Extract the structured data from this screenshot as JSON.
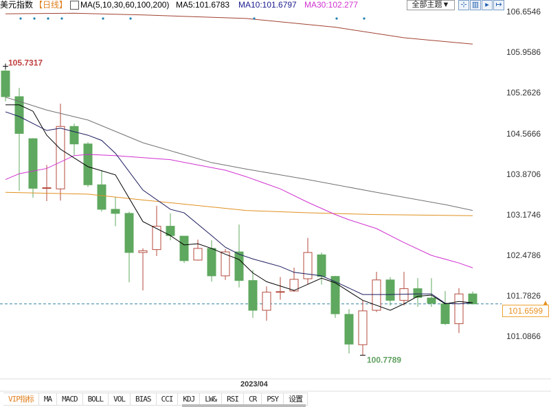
{
  "header": {
    "title": "美元指数",
    "period": "【日线】",
    "ma_label": "MA(5,10,30,60,100,200)",
    "ma5": "MA5:101.6783",
    "ma10": "MA10:101.6797",
    "ma30": "MA30:102.277",
    "theme_button": "全部主题▼",
    "tool_icons": [
      "zoom-icon",
      "chart-icon",
      "play-icon",
      "exit-icon"
    ]
  },
  "colors": {
    "up": "#b44a3e",
    "down": "#5fa85f",
    "ma5": "#000000",
    "ma10": "#1a1a5e",
    "ma30": "#d030d0",
    "ma60": "#707070",
    "ma100": "#e09020",
    "ma200": "#a04030",
    "last_price": "#e89020"
  },
  "chart_data": {
    "type": "candlestick",
    "ylim": [
      100.7,
      106.7
    ],
    "y_ticks": [
      "106.6546",
      "105.9586",
      "105.2626",
      "104.5666",
      "103.8706",
      "103.1746",
      "102.4786",
      "101.7826",
      "101.0866"
    ],
    "x_tick": "2023/04",
    "high_label": "105.7317",
    "low_label": "100.7789",
    "last_price": "101.6599",
    "ohlc": [
      [
        105.65,
        105.73,
        105.13,
        105.21
      ],
      [
        105.21,
        105.36,
        103.6,
        104.58
      ],
      [
        104.49,
        104.5,
        103.48,
        103.64
      ],
      [
        103.64,
        104.04,
        103.42,
        103.65
      ],
      [
        103.63,
        105.09,
        103.43,
        104.7
      ],
      [
        104.7,
        104.75,
        104.21,
        104.4
      ],
      [
        104.4,
        104.43,
        103.66,
        103.7
      ],
      [
        103.7,
        103.95,
        103.24,
        103.28
      ],
      [
        103.28,
        103.49,
        102.99,
        103.21
      ],
      [
        103.21,
        103.24,
        102.03,
        102.54
      ],
      [
        102.54,
        102.61,
        101.89,
        102.57
      ],
      [
        102.59,
        103.34,
        102.48,
        102.99
      ],
      [
        102.99,
        103.21,
        102.75,
        102.83
      ],
      [
        102.82,
        102.82,
        102.36,
        102.4
      ],
      [
        102.41,
        102.76,
        102.4,
        102.61
      ],
      [
        102.61,
        102.75,
        102.04,
        102.14
      ],
      [
        102.14,
        102.6,
        102.07,
        102.55
      ],
      [
        102.55,
        103.02,
        101.94,
        102.06
      ],
      [
        102.06,
        102.24,
        101.42,
        101.55
      ],
      [
        101.55,
        101.96,
        101.37,
        101.86
      ],
      [
        101.87,
        102.12,
        101.73,
        101.87
      ],
      [
        101.88,
        102.28,
        101.87,
        102.08
      ],
      [
        102.09,
        102.79,
        101.99,
        102.54
      ],
      [
        102.5,
        102.54,
        101.99,
        102.13
      ],
      [
        102.13,
        102.14,
        101.42,
        101.49
      ],
      [
        101.48,
        101.57,
        100.81,
        100.97
      ],
      [
        100.96,
        101.72,
        100.7789,
        101.54
      ],
      [
        101.55,
        102.21,
        101.52,
        102.07
      ],
      [
        102.07,
        102.12,
        101.63,
        101.72
      ],
      [
        101.72,
        102.21,
        101.63,
        101.92
      ],
      [
        101.92,
        102.1,
        101.61,
        101.77
      ],
      [
        101.76,
        102.1,
        101.61,
        101.67
      ],
      [
        101.66,
        101.88,
        101.3,
        101.32
      ],
      [
        101.32,
        101.93,
        101.16,
        101.83
      ],
      [
        101.83,
        101.87,
        101.66,
        101.6599
      ]
    ],
    "ma": {
      "ma5": [
        [
          0,
          105.07
        ],
        [
          1,
          105.07
        ],
        [
          2,
          104.96
        ],
        [
          3,
          104.55
        ],
        [
          4,
          104.31
        ],
        [
          6,
          104.01
        ],
        [
          8,
          103.87
        ],
        [
          10,
          103.07
        ],
        [
          12,
          102.83
        ],
        [
          13,
          102.67
        ],
        [
          14,
          102.69
        ],
        [
          15,
          102.61
        ],
        [
          16,
          102.51
        ],
        [
          17,
          102.42
        ],
        [
          18,
          102.19
        ],
        [
          19,
          102.04
        ],
        [
          21,
          101.89
        ],
        [
          23,
          102.1
        ],
        [
          24,
          102.02
        ],
        [
          26,
          101.72
        ],
        [
          28,
          101.55
        ],
        [
          29,
          101.66
        ],
        [
          30,
          101.79
        ],
        [
          31,
          101.81
        ],
        [
          32,
          101.66
        ],
        [
          33,
          101.7
        ],
        [
          34,
          101.6783
        ]
      ],
      "ma10": [
        [
          0,
          104.95
        ],
        [
          1,
          104.87
        ],
        [
          3,
          104.63
        ],
        [
          4,
          104.67
        ],
        [
          6,
          104.55
        ],
        [
          7,
          104.46
        ],
        [
          8,
          104.24
        ],
        [
          10,
          103.61
        ],
        [
          12,
          103.28
        ],
        [
          13,
          103.22
        ],
        [
          15,
          102.83
        ],
        [
          16,
          102.63
        ],
        [
          17,
          102.51
        ],
        [
          18,
          102.43
        ],
        [
          20,
          102.3
        ],
        [
          21,
          102.2
        ],
        [
          23,
          102.14
        ],
        [
          24,
          102.04
        ],
        [
          26,
          101.82
        ],
        [
          28,
          101.82
        ],
        [
          30,
          101.83
        ],
        [
          31,
          101.83
        ],
        [
          32,
          101.67
        ],
        [
          33,
          101.66
        ],
        [
          34,
          101.6797
        ]
      ],
      "ma30": [
        [
          0,
          103.79
        ],
        [
          1,
          103.89
        ],
        [
          3,
          103.98
        ],
        [
          5,
          104.2
        ],
        [
          6,
          104.22
        ],
        [
          8,
          104.2
        ],
        [
          12,
          104.13
        ],
        [
          14,
          104.04
        ],
        [
          16,
          103.95
        ],
        [
          17.5,
          103.84
        ],
        [
          20,
          103.63
        ],
        [
          22,
          103.4
        ],
        [
          24,
          103.19
        ],
        [
          25,
          103.1
        ],
        [
          27,
          102.95
        ],
        [
          29,
          102.71
        ],
        [
          31,
          102.49
        ],
        [
          33,
          102.36
        ],
        [
          34,
          102.277
        ]
      ],
      "ma60": [
        [
          0,
          105.2
        ],
        [
          1,
          105.13
        ],
        [
          3,
          104.98
        ],
        [
          6,
          104.81
        ],
        [
          10,
          104.42
        ],
        [
          15,
          104.08
        ],
        [
          17.5,
          103.97
        ],
        [
          22,
          103.79
        ],
        [
          27,
          103.57
        ],
        [
          32,
          103.36
        ],
        [
          34,
          103.26
        ]
      ],
      "ma100": [
        [
          0,
          103.57
        ],
        [
          6,
          103.54
        ],
        [
          10,
          103.44
        ],
        [
          17.5,
          103.26
        ],
        [
          22,
          103.22
        ],
        [
          27,
          103.19
        ],
        [
          34,
          103.17
        ]
      ],
      "ma200": [
        [
          0,
          106.63
        ],
        [
          5,
          106.64
        ],
        [
          10,
          106.61
        ],
        [
          17.5,
          106.55
        ],
        [
          24,
          106.4
        ],
        [
          29,
          106.22
        ],
        [
          34,
          106.11
        ]
      ]
    },
    "event_markers": [
      1,
      2,
      3,
      4,
      7,
      9,
      18,
      24,
      26
    ]
  },
  "tabs": [
    "VIP指标",
    "MA",
    "MACD",
    "BOLL",
    "VOL",
    "BIAS",
    "CCI",
    "KDJ",
    "LW&",
    "RSI",
    "CR",
    "PSY",
    "设置"
  ]
}
